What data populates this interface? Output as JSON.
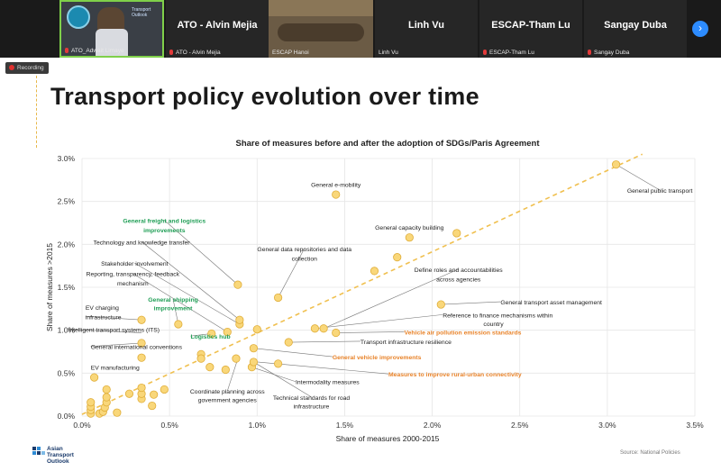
{
  "participants": [
    {
      "display": "",
      "label": "ATO_Adwait Limaye",
      "active": true,
      "banner": "Transport Outlook"
    },
    {
      "display": "ATO - Alvin Mejia",
      "label": "ATO - Alvin Mejia"
    },
    {
      "display": "",
      "label": "ESCAP Hanoi"
    },
    {
      "display": "Linh Vu",
      "label": "Linh Vu"
    },
    {
      "display": "ESCAP-Tham Lu",
      "label": "ESCAP-Tham Lu"
    },
    {
      "display": "Sangay Duba",
      "label": "Sangay Duba"
    }
  ],
  "recording_label": "Recording",
  "slide": {
    "title": "Transport policy evolution over time",
    "logo": "Asian Transport Outlook",
    "source": "Source: National Policies"
  },
  "colors": {
    "point_fill": "#f9d77a",
    "point_stroke": "#e0ae3a",
    "trend": "#f0c050",
    "green_label": "#1f9e55",
    "orange_label": "#e8832a",
    "grid": "#e6e6e6"
  },
  "chart_data": {
    "type": "scatter",
    "title": "Share of measures before and after the adoption of SDGs/Paris Agreement",
    "xlabel": "Share of measures 2000-2015",
    "ylabel": "Share of measures >2015",
    "xlim": [
      0,
      3.5
    ],
    "ylim": [
      0,
      3.0
    ],
    "xticks": [
      0,
      0.5,
      1.0,
      1.5,
      2.0,
      2.5,
      3.0,
      3.5
    ],
    "xtick_labels": [
      "0.0%",
      "0.5%",
      "1.0%",
      "1.5%",
      "2.0%",
      "2.5%",
      "3.0%",
      "3.5%"
    ],
    "yticks": [
      0,
      0.5,
      1.0,
      1.5,
      2.0,
      2.5,
      3.0
    ],
    "ytick_labels": [
      "0.0%",
      "0.5%",
      "1.0%",
      "1.5%",
      "2.0%",
      "2.5%",
      "3.0%"
    ],
    "trendline": {
      "from": [
        0.0,
        0.02
      ],
      "to": [
        3.2,
        3.05
      ]
    },
    "points": [
      [
        0.05,
        0.03
      ],
      [
        0.05,
        0.07
      ],
      [
        0.05,
        0.11
      ],
      [
        0.05,
        0.16
      ],
      [
        0.1,
        0.03
      ],
      [
        0.12,
        0.05
      ],
      [
        0.13,
        0.1
      ],
      [
        0.14,
        0.16
      ],
      [
        0.14,
        0.22
      ],
      [
        0.14,
        0.31
      ],
      [
        0.2,
        0.04
      ],
      [
        0.27,
        0.26
      ],
      [
        0.34,
        0.2
      ],
      [
        0.34,
        0.26
      ],
      [
        0.34,
        0.33
      ],
      [
        0.4,
        0.12
      ],
      [
        0.41,
        0.25
      ],
      [
        0.47,
        0.31
      ],
      [
        0.07,
        0.45
      ],
      [
        0.34,
        0.68
      ],
      [
        0.34,
        0.85
      ],
      [
        0.34,
        1.12
      ],
      [
        0.55,
        1.07
      ],
      [
        0.68,
        0.72
      ],
      [
        0.68,
        0.67
      ],
      [
        0.73,
        0.57
      ],
      [
        0.74,
        0.96
      ],
      [
        0.82,
        0.54
      ],
      [
        0.83,
        0.98
      ],
      [
        0.9,
        1.07
      ],
      [
        0.9,
        1.12
      ],
      [
        0.88,
        0.67
      ],
      [
        0.89,
        1.53
      ],
      [
        0.97,
        0.57
      ],
      [
        0.98,
        0.79
      ],
      [
        0.98,
        0.63
      ],
      [
        1.0,
        1.01
      ],
      [
        1.12,
        1.38
      ],
      [
        1.18,
        0.86
      ],
      [
        1.12,
        0.61
      ],
      [
        1.33,
        1.02
      ],
      [
        1.38,
        1.02
      ],
      [
        1.45,
        2.58
      ],
      [
        1.45,
        0.97
      ],
      [
        1.67,
        1.69
      ],
      [
        1.8,
        1.85
      ],
      [
        1.87,
        2.08
      ],
      [
        2.05,
        1.3
      ],
      [
        2.14,
        2.13
      ],
      [
        3.05,
        2.93
      ]
    ],
    "annotations": [
      {
        "text": "General e-mobility",
        "color": "dark",
        "x": 1.45,
        "y": 2.58,
        "lx": 1.45,
        "ly": 2.67,
        "anchor": "middle"
      },
      {
        "text": "General public transport",
        "color": "dark",
        "x": 3.05,
        "y": 2.93,
        "lx": 3.3,
        "ly": 2.6,
        "anchor": "middle"
      },
      {
        "text": "General freight and logistics",
        "color": "green",
        "x": 0.89,
        "y": 1.53,
        "lx": 0.47,
        "ly": 2.25,
        "anchor": "middle"
      },
      {
        "text": "improvements",
        "color": "green",
        "x": null,
        "lx": 0.47,
        "ly": 2.14,
        "anchor": "middle"
      },
      {
        "text": "General capacity building",
        "color": "dark",
        "x": 1.87,
        "y": 2.08,
        "lx": 1.87,
        "ly": 2.17,
        "anchor": "middle"
      },
      {
        "text": "Technology and knowledge transfer",
        "color": "dark",
        "x": 0.9,
        "y": 1.12,
        "lx": 0.34,
        "ly": 2.0,
        "anchor": "middle"
      },
      {
        "text": "General data repositories and data",
        "color": "dark",
        "x": 1.12,
        "y": 1.38,
        "lx": 1.27,
        "ly": 1.92,
        "anchor": "middle"
      },
      {
        "text": "collection",
        "color": "dark",
        "x": null,
        "lx": 1.27,
        "ly": 1.81,
        "anchor": "middle"
      },
      {
        "text": "Stakeholder involvement",
        "color": "dark",
        "x": 0.9,
        "y": 1.07,
        "lx": 0.3,
        "ly": 1.75,
        "anchor": "middle"
      },
      {
        "text": "Reporting, transparency, feedback",
        "color": "dark",
        "x": 0.83,
        "y": 0.98,
        "lx": 0.29,
        "ly": 1.63,
        "anchor": "middle"
      },
      {
        "text": "mechanism",
        "color": "dark",
        "x": null,
        "lx": 0.29,
        "ly": 1.52,
        "anchor": "middle"
      },
      {
        "text": "Define roles and accountabilities",
        "color": "dark",
        "x": 1.38,
        "y": 1.02,
        "lx": 2.15,
        "ly": 1.68,
        "anchor": "middle"
      },
      {
        "text": "across agencies",
        "color": "dark",
        "x": null,
        "lx": 2.15,
        "ly": 1.57,
        "anchor": "middle"
      },
      {
        "text": "General shipping",
        "color": "green",
        "x": 0.55,
        "y": 1.07,
        "lx": 0.52,
        "ly": 1.33,
        "anchor": "middle"
      },
      {
        "text": "improvement",
        "color": "green",
        "x": null,
        "lx": 0.52,
        "ly": 1.23,
        "anchor": "middle"
      },
      {
        "text": "General transport asset management",
        "color": "dark",
        "x": 2.05,
        "y": 1.3,
        "lx": 2.39,
        "ly": 1.3,
        "anchor": "start"
      },
      {
        "text": "EV charging",
        "color": "dark",
        "x": null,
        "lx": 0.02,
        "ly": 1.24,
        "anchor": "start"
      },
      {
        "text": "infrastructure",
        "color": "dark",
        "x": 0.34,
        "y": 1.12,
        "lx": 0.02,
        "ly": 1.13,
        "anchor": "start"
      },
      {
        "text": "Reference to finance mechanisms within",
        "color": "dark",
        "x": 1.33,
        "y": 1.02,
        "lx": 2.06,
        "ly": 1.15,
        "anchor": "start"
      },
      {
        "text": "country",
        "color": "dark",
        "x": null,
        "lx": 2.35,
        "ly": 1.05,
        "anchor": "middle"
      },
      {
        "text": "Intelligent transport systems (ITS)",
        "color": "dark",
        "x": 0.34,
        "y": 0.97,
        "lx": -0.08,
        "ly": 0.98,
        "anchor": "start"
      },
      {
        "text": "Logistics hub",
        "color": "green",
        "x": 0.74,
        "y": 0.96,
        "lx": 0.62,
        "ly": 0.9,
        "anchor": "start"
      },
      {
        "text": "Vehicle air pollution emission standards",
        "color": "orange",
        "x": 1.45,
        "y": 0.97,
        "lx": 1.84,
        "ly": 0.95,
        "anchor": "start"
      },
      {
        "text": "Transport infrastructure resilience",
        "color": "dark",
        "x": 1.18,
        "y": 0.86,
        "lx": 1.59,
        "ly": 0.84,
        "anchor": "start"
      },
      {
        "text": "General international conventions",
        "color": "dark",
        "x": 0.34,
        "y": 0.85,
        "lx": 0.05,
        "ly": 0.78,
        "anchor": "start"
      },
      {
        "text": "General vehicle improvements",
        "color": "orange",
        "x": 0.98,
        "y": 0.79,
        "lx": 1.43,
        "ly": 0.66,
        "anchor": "start"
      },
      {
        "text": "EV manufacturing",
        "color": "dark",
        "x": 0.07,
        "y": 0.45,
        "lx": 0.05,
        "ly": 0.54,
        "anchor": "start"
      },
      {
        "text": "Measures to improve rural-urban connectivity",
        "color": "orange",
        "x": 1.0,
        "y": 0.63,
        "lx": 1.75,
        "ly": 0.46,
        "anchor": "start"
      },
      {
        "text": "Intermodality measures",
        "color": "dark",
        "x": 0.97,
        "y": 0.57,
        "lx": 1.22,
        "ly": 0.37,
        "anchor": "start"
      },
      {
        "text": "Coordinate planning across",
        "color": "dark",
        "x": 0.89,
        "y": 0.67,
        "lx": 0.83,
        "ly": 0.26,
        "anchor": "middle"
      },
      {
        "text": "government agencies",
        "color": "dark",
        "x": null,
        "lx": 0.83,
        "ly": 0.16,
        "anchor": "middle"
      },
      {
        "text": "Technical standards for road",
        "color": "dark",
        "x": 0.98,
        "y": 0.63,
        "lx": 1.31,
        "ly": 0.19,
        "anchor": "middle"
      },
      {
        "text": "infrastructure",
        "color": "dark",
        "x": null,
        "lx": 1.31,
        "ly": 0.09,
        "anchor": "middle"
      }
    ]
  }
}
